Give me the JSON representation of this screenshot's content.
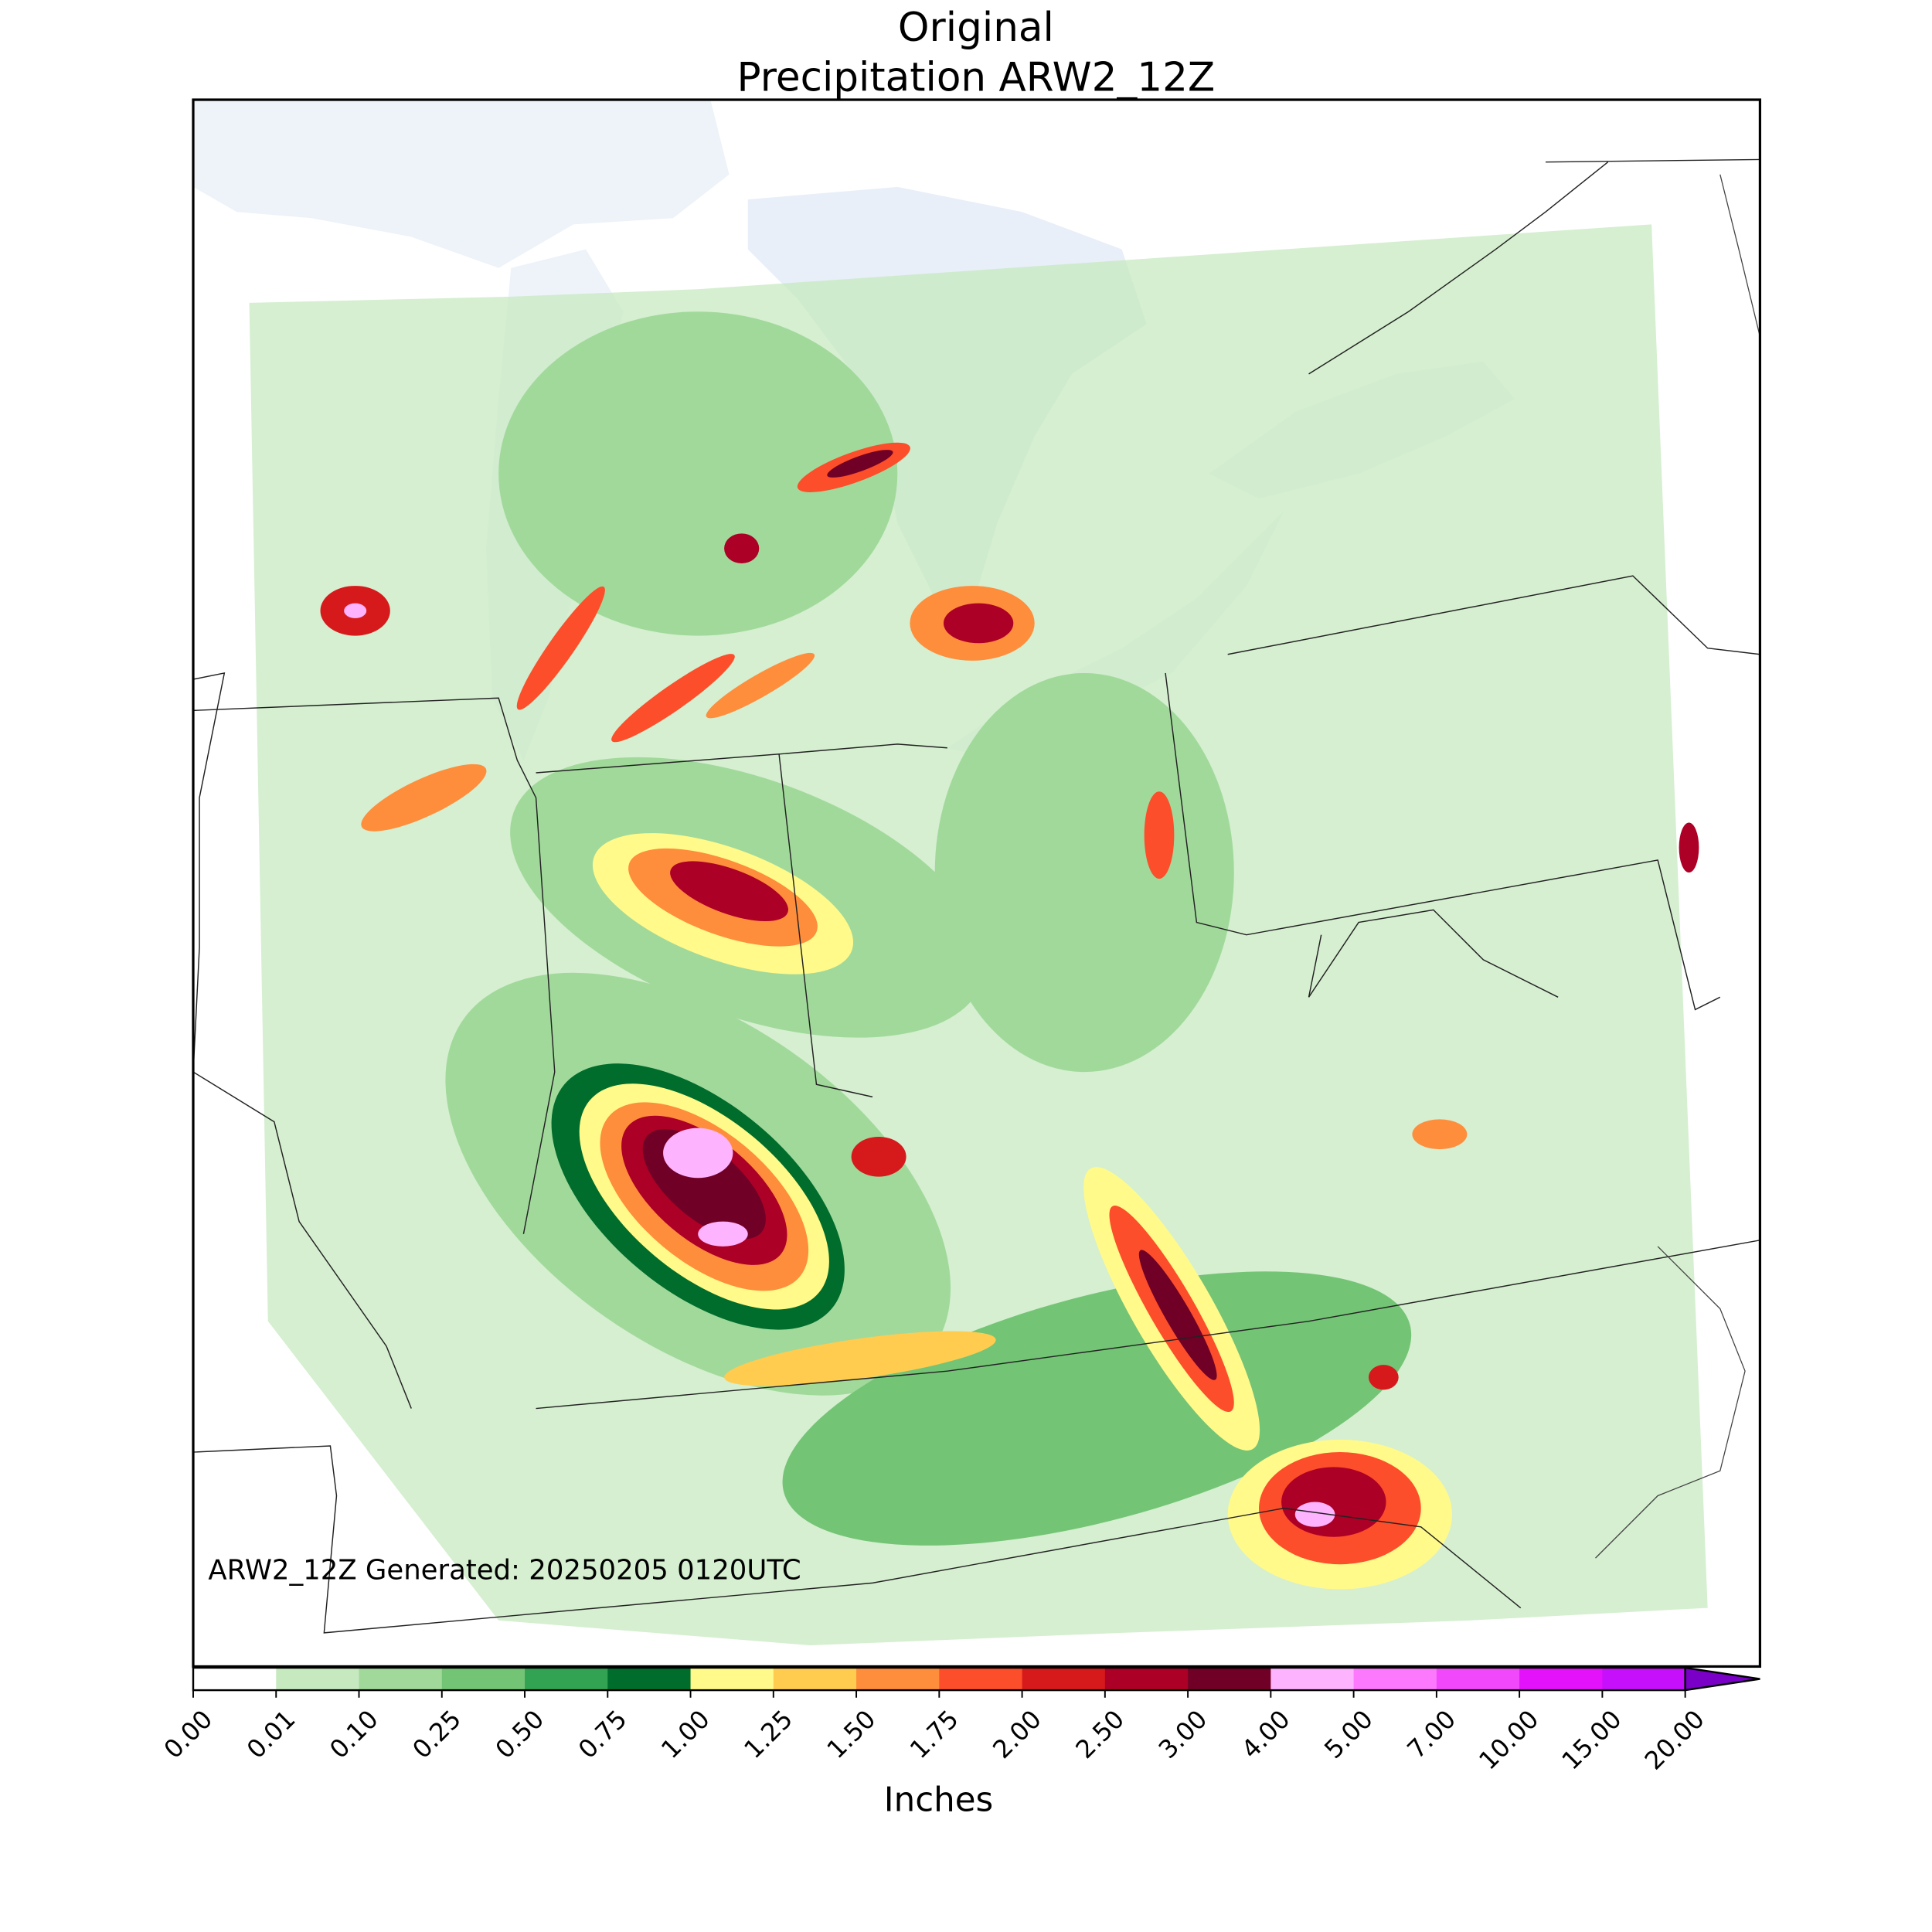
{
  "title": {
    "line1": "Original",
    "line2": "Precipitation ARW2_12Z"
  },
  "annotation": "ARW2_12Z Generated: 20250205 0120UTC",
  "colorbar": {
    "label": "Inches",
    "extend": "max",
    "ticks": [
      {
        "value": 0,
        "label": "0.00"
      },
      {
        "value": 0.01,
        "label": "0.01"
      },
      {
        "value": 0.1,
        "label": "0.10"
      },
      {
        "value": 0.25,
        "label": "0.25"
      },
      {
        "value": 0.5,
        "label": "0.50"
      },
      {
        "value": 0.75,
        "label": "0.75"
      },
      {
        "value": 1,
        "label": "1.00"
      },
      {
        "value": 1.25,
        "label": "1.25"
      },
      {
        "value": 1.5,
        "label": "1.50"
      },
      {
        "value": 1.75,
        "label": "1.75"
      },
      {
        "value": 2,
        "label": "2.00"
      },
      {
        "value": 2.5,
        "label": "2.50"
      },
      {
        "value": 3,
        "label": "3.00"
      },
      {
        "value": 4,
        "label": "4.00"
      },
      {
        "value": 5,
        "label": "5.00"
      },
      {
        "value": 7,
        "label": "7.00"
      },
      {
        "value": 10,
        "label": "10.00"
      },
      {
        "value": 15,
        "label": "15.00"
      },
      {
        "value": 20,
        "label": "20.00"
      }
    ],
    "colors": [
      "#ffffff",
      "#c7e9c0",
      "#a1d99b",
      "#74c476",
      "#31a353",
      "#006d2c",
      "#fffa8a",
      "#ffcc4f",
      "#fe8d3c",
      "#fc4e2a",
      "#d61a1c",
      "#ad0026",
      "#700026",
      "#fdb3fe",
      "#fc78fc",
      "#f148fb",
      "#e411fb",
      "#c60ffb"
    ],
    "over_color": "#7a00c8"
  }
}
